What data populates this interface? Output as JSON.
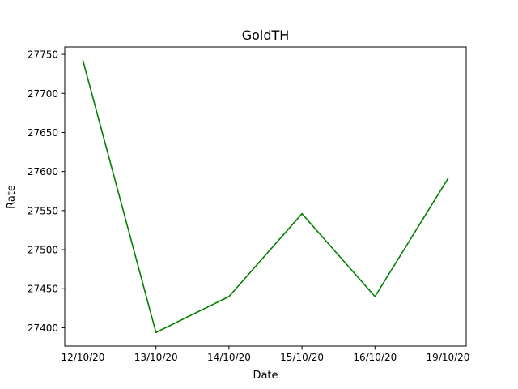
{
  "chart_data": {
    "type": "line",
    "title": "GoldTH",
    "xlabel": "Date",
    "ylabel": "Rate",
    "categories": [
      "12/10/20",
      "13/10/20",
      "14/10/20",
      "15/10/20",
      "16/10/20",
      "19/10/20"
    ],
    "series": [
      {
        "values": [
          27742,
          27394,
          27440,
          27546,
          27440,
          27591
        ],
        "color": "#008000"
      }
    ],
    "yticks": [
      27400,
      27450,
      27500,
      27550,
      27600,
      27650,
      27700,
      27750
    ],
    "ylim": [
      27376.6,
      27759.4
    ],
    "grid": false,
    "legend": "none"
  }
}
